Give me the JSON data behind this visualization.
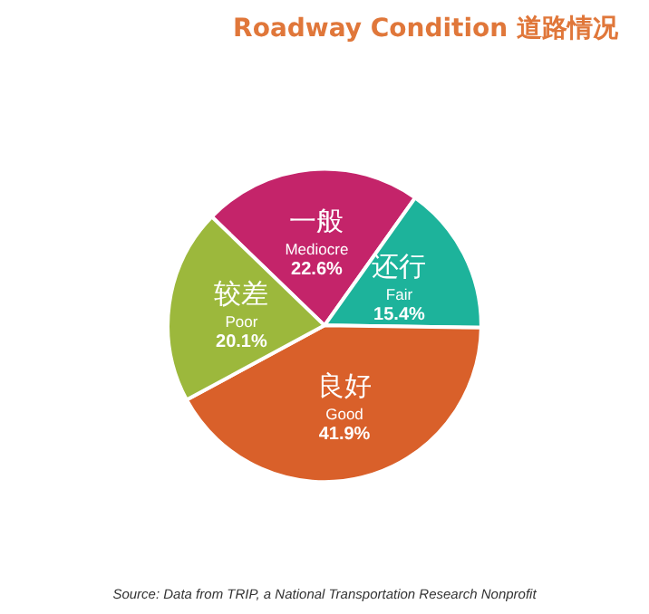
{
  "chart_data": {
    "type": "pie",
    "title": "Roadway Condition 道路情况",
    "categories": [
      "一般\nMediocre",
      "还行\nFair",
      "良好\nGood",
      "较差\nPoor"
    ],
    "values": [
      22.6,
      15.4,
      41.9,
      20.1
    ],
    "value_labels": [
      "22.6%",
      "15.4%",
      "41.9%",
      "20.1%"
    ],
    "colors": [
      "#c4246a",
      "#1db39b",
      "#d9602a",
      "#9cb83c"
    ],
    "annotations": [
      "Source: Data from TRIP, a National Transportation Research Nonprofit"
    ],
    "legend": false
  }
}
